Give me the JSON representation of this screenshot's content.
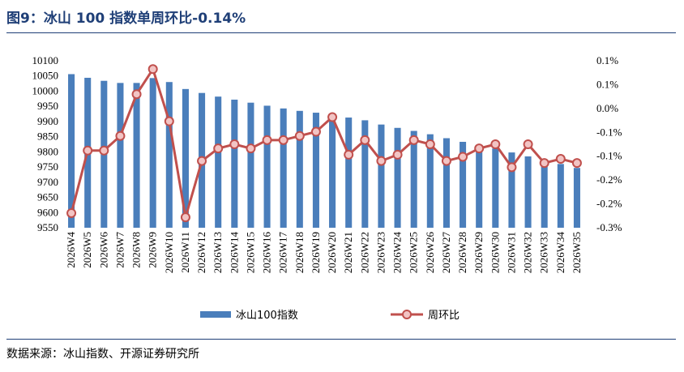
{
  "title": "图9：冰山 100 指数单周环比-0.14%",
  "source": "数据来源：冰山指数、开源证券研究所",
  "colors": {
    "bar": "#4a7ebb",
    "line": "#c0504d",
    "marker_fill": "#f2c4c4",
    "title": "#1f3f77"
  },
  "chart_data": {
    "type": "bar",
    "categories": [
      "2026W4",
      "2026W5",
      "2026W6",
      "2026W7",
      "2026W8",
      "2026W9",
      "2026W10",
      "2026W11",
      "2026W12",
      "2026W13",
      "2026W14",
      "2026W15",
      "2026W16",
      "2026W17",
      "2026W18",
      "2026W19",
      "2026W20",
      "2026W21",
      "2026W22",
      "2026W23",
      "2026W24",
      "2026W25",
      "2026W26",
      "2026W27",
      "2026W28",
      "2026W29",
      "2026W30",
      "2026W31",
      "2026W32",
      "2026W33",
      "2026W34",
      "2026W35"
    ],
    "series": [
      {
        "name": "冰山100指数",
        "type": "bar",
        "axis": "left",
        "values": [
          10056,
          10044,
          10034,
          10027,
          10027,
          10043,
          10030,
          10007,
          9994,
          9982,
          9972,
          9962,
          9952,
          9943,
          9935,
          9929,
          9925,
          9913,
          9904,
          9890,
          9879,
          9869,
          9858,
          9845,
          9833,
          9823,
          9811,
          9798,
          9785,
          9772,
          9760,
          9747
        ]
      },
      {
        "name": "周环比",
        "type": "line",
        "axis": "right",
        "values": [
          -0.265,
          -0.115,
          -0.115,
          -0.08,
          0.02,
          0.08,
          -0.045,
          -0.275,
          -0.14,
          -0.11,
          -0.1,
          -0.11,
          -0.09,
          -0.09,
          -0.08,
          -0.07,
          -0.035,
          -0.125,
          -0.09,
          -0.14,
          -0.125,
          -0.09,
          -0.1,
          -0.14,
          -0.13,
          -0.11,
          -0.1,
          -0.155,
          -0.1,
          -0.145,
          -0.135,
          -0.145
        ]
      }
    ],
    "left_axis": {
      "min": 9550,
      "max": 10100,
      "step": 50,
      "ticks": [
        "9550",
        "9600",
        "9650",
        "9700",
        "9750",
        "9800",
        "9850",
        "9900",
        "9950",
        "10000",
        "10050",
        "10100"
      ]
    },
    "right_axis": {
      "min": -0.3,
      "max": 0.1,
      "ticks": [
        "-0.3%",
        "-0.2%",
        "-0.2%",
        "-0.1%",
        "-0.1%",
        "0.0%",
        "0.1%",
        "0.1%"
      ]
    },
    "legend": {
      "position": "bottom",
      "items": [
        "冰山100指数",
        "周环比"
      ]
    },
    "grid": false
  }
}
